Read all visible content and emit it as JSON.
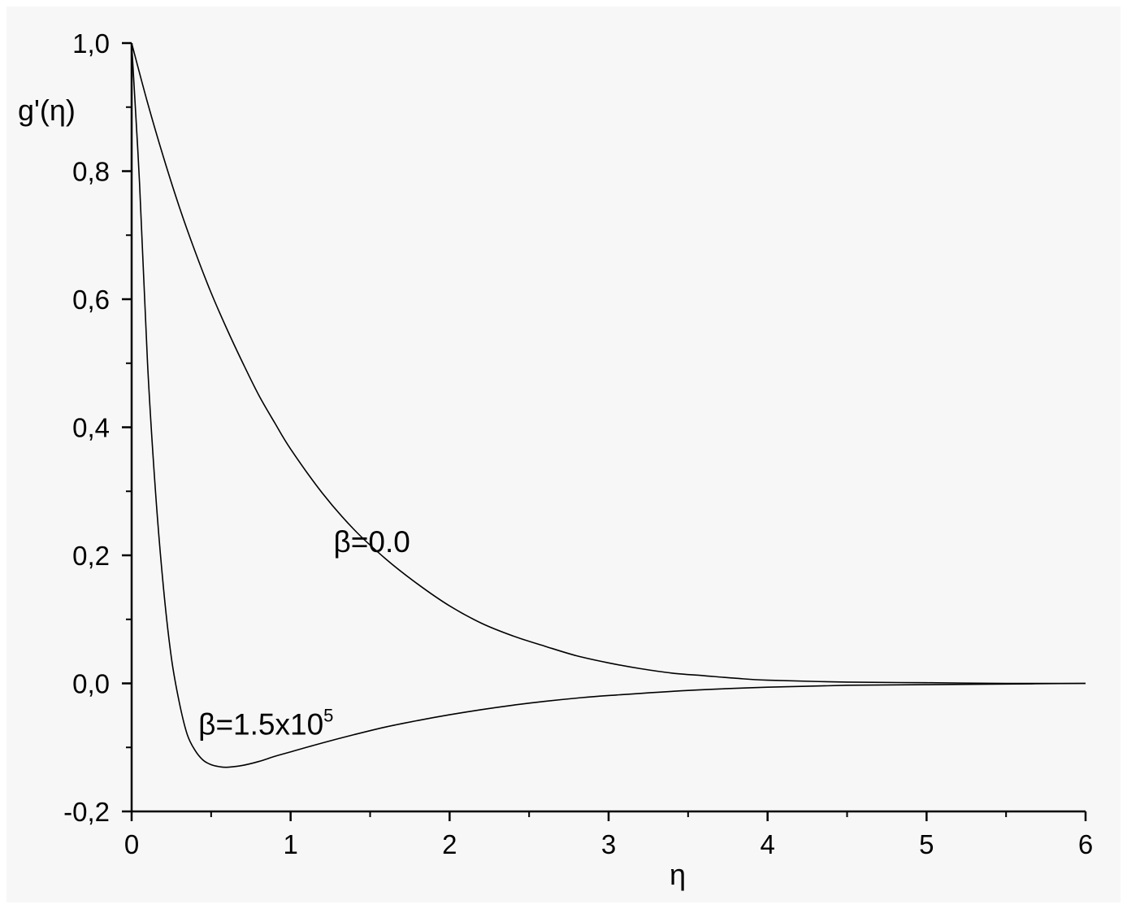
{
  "chart_data": {
    "type": "line",
    "title": "",
    "xlabel": "η",
    "ylabel": "g'(η)",
    "xlim": [
      0,
      6
    ],
    "ylim": [
      -0.2,
      1.0
    ],
    "x_ticks": [
      0,
      1,
      2,
      3,
      4,
      5,
      6
    ],
    "x_tick_labels": [
      "0",
      "1",
      "2",
      "3",
      "4",
      "5",
      "6"
    ],
    "x_minor_step": 0.5,
    "y_ticks": [
      -0.2,
      0.0,
      0.2,
      0.4,
      0.6,
      0.8,
      1.0
    ],
    "y_tick_labels": [
      "-0,2",
      "0,0",
      "0,2",
      "0,4",
      "0,6",
      "0,8",
      "1,0"
    ],
    "y_minor_step": 0.1,
    "grid": false,
    "legend": "none",
    "line_color": "#000000",
    "background_color": "#f7f7f7",
    "series": [
      {
        "x": [
          0,
          0.1,
          0.2,
          0.3,
          0.4,
          0.5,
          0.6,
          0.7,
          0.8,
          0.9,
          1.0,
          1.2,
          1.4,
          1.6,
          1.8,
          2.0,
          2.2,
          2.4,
          2.6,
          2.8,
          3.0,
          3.2,
          3.4,
          3.6,
          3.8,
          4.0,
          4.5,
          5.0,
          5.5,
          6.0
        ],
        "y": [
          1.0,
          0.907,
          0.822,
          0.744,
          0.674,
          0.61,
          0.553,
          0.5,
          0.45,
          0.407,
          0.366,
          0.297,
          0.24,
          0.194,
          0.155,
          0.121,
          0.094,
          0.074,
          0.058,
          0.043,
          0.032,
          0.023,
          0.016,
          0.012,
          0.008,
          0.005,
          0.002,
          0.001,
          0.0,
          0.0
        ]
      },
      {
        "x": [
          0,
          0.05,
          0.1,
          0.15,
          0.2,
          0.25,
          0.3,
          0.35,
          0.4,
          0.45,
          0.5,
          0.55,
          0.6,
          0.7,
          0.8,
          0.9,
          1.0,
          1.2,
          1.4,
          1.6,
          1.8,
          2.0,
          2.2,
          2.4,
          2.6,
          2.8,
          3.0,
          3.5,
          4.0,
          4.5,
          5.0,
          5.5,
          6.0
        ],
        "y": [
          1.0,
          0.78,
          0.5,
          0.3,
          0.15,
          0.04,
          -0.03,
          -0.08,
          -0.105,
          -0.12,
          -0.127,
          -0.13,
          -0.131,
          -0.128,
          -0.122,
          -0.114,
          -0.107,
          -0.093,
          -0.08,
          -0.068,
          -0.058,
          -0.049,
          -0.041,
          -0.034,
          -0.028,
          -0.023,
          -0.019,
          -0.011,
          -0.006,
          -0.003,
          -0.002,
          -0.001,
          0.0
        ]
      }
    ],
    "annotations": [
      {
        "text": "β=0.0",
        "x": 1.27,
        "y": 0.205
      },
      {
        "text": "β=1.5x10",
        "sup": "5",
        "x": 0.42,
        "y": -0.08
      }
    ]
  }
}
